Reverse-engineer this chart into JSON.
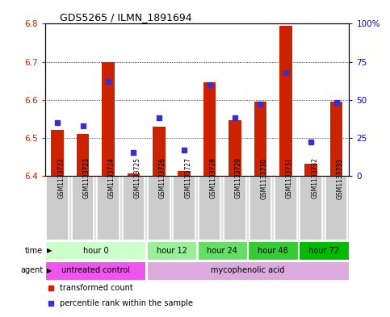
{
  "title": "GDS5265 / ILMN_1891694",
  "samples": [
    "GSM1133722",
    "GSM1133723",
    "GSM1133724",
    "GSM1133725",
    "GSM1133726",
    "GSM1133727",
    "GSM1133728",
    "GSM1133729",
    "GSM1133730",
    "GSM1133731",
    "GSM1133732",
    "GSM1133733"
  ],
  "transformed_count": [
    6.52,
    6.51,
    6.7,
    6.405,
    6.53,
    6.413,
    6.645,
    6.545,
    6.595,
    6.795,
    6.432,
    6.595
  ],
  "percentile_rank": [
    35,
    33,
    62,
    15,
    38,
    17,
    60,
    38,
    47,
    68,
    22,
    48
  ],
  "bar_bottom": 6.4,
  "ylim": [
    6.4,
    6.8
  ],
  "y2lim": [
    0,
    100
  ],
  "yticks": [
    6.4,
    6.5,
    6.6,
    6.7,
    6.8
  ],
  "y2ticks": [
    0,
    25,
    50,
    75,
    100
  ],
  "y2ticklabels": [
    "0",
    "25",
    "50",
    "75",
    "100%"
  ],
  "bar_color": "#cc2200",
  "dot_color": "#3333cc",
  "plot_bg_color": "#ffffff",
  "time_groups": [
    {
      "label": "hour 0",
      "indices": [
        0,
        1,
        2,
        3
      ],
      "color": "#ccffcc"
    },
    {
      "label": "hour 12",
      "indices": [
        4,
        5
      ],
      "color": "#99ee99"
    },
    {
      "label": "hour 24",
      "indices": [
        6,
        7
      ],
      "color": "#66dd66"
    },
    {
      "label": "hour 48",
      "indices": [
        8,
        9
      ],
      "color": "#33cc33"
    },
    {
      "label": "hour 72",
      "indices": [
        10,
        11
      ],
      "color": "#00bb00"
    }
  ],
  "agent_groups": [
    {
      "label": "untreated control",
      "indices": [
        0,
        1,
        2,
        3
      ],
      "color": "#ee55ee"
    },
    {
      "label": "mycophenolic acid",
      "indices": [
        4,
        5,
        6,
        7,
        8,
        9,
        10,
        11
      ],
      "color": "#ddaadd"
    }
  ],
  "legend_items": [
    {
      "label": "transformed count",
      "color": "#cc2200"
    },
    {
      "label": "percentile rank within the sample",
      "color": "#3333cc"
    }
  ],
  "left_tick_color": "#cc2200",
  "right_tick_color": "#0000cc"
}
